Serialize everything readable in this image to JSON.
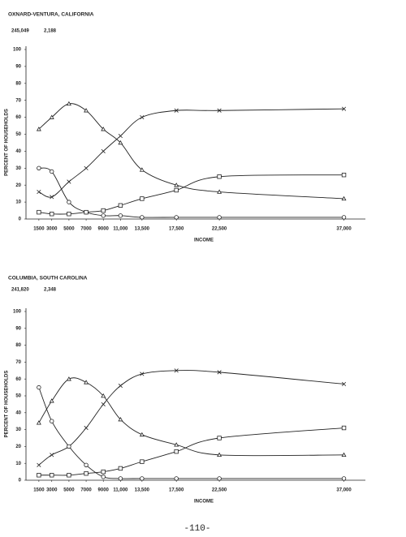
{
  "chart_data": [
    {
      "type": "line",
      "title": "OXNARD-VENTURA, CALIFORNIA",
      "header": [
        "245,049",
        "2,188"
      ],
      "x_label": "INCOME",
      "y_label": "PERCENT OF HOUSEHOLDS",
      "x": [
        1500,
        3000,
        5000,
        7000,
        9000,
        11000,
        13500,
        17500,
        22500,
        37000
      ],
      "xlim": [
        0,
        39500
      ],
      "ylim": [
        0,
        100
      ],
      "xticks": [
        1500,
        3000,
        5000,
        7000,
        9000,
        {
          "value": 11000,
          "label": "11,000"
        },
        {
          "value": 13500,
          "label": "13,500"
        },
        {
          "value": 17500,
          "label": "17,500"
        },
        {
          "value": 22500,
          "label": "22,500"
        },
        {
          "value": 37000,
          "label": "37,000"
        }
      ],
      "yticks": [
        0,
        10,
        20,
        30,
        40,
        50,
        60,
        70,
        80,
        90,
        100
      ],
      "series": [
        {
          "marker": "x",
          "color": "#222",
          "values": [
            16,
            13,
            22,
            30,
            40,
            49,
            60,
            64,
            64,
            65
          ]
        },
        {
          "marker": "triangle",
          "color": "#222",
          "values": [
            53,
            60,
            68,
            64,
            53,
            45,
            29,
            20,
            16,
            12
          ]
        },
        {
          "marker": "circle",
          "color": "#222",
          "values": [
            30,
            28,
            10,
            4,
            2,
            2,
            1,
            1,
            1,
            1
          ]
        },
        {
          "marker": "square",
          "color": "#222",
          "values": [
            4,
            3,
            3,
            4,
            5,
            8,
            12,
            17,
            25,
            26
          ]
        }
      ]
    },
    {
      "type": "line",
      "title": "COLUMBIA, SOUTH CAROLINA",
      "header": [
        "241,820",
        "2,348"
      ],
      "x_label": "INCOME",
      "y_label": "PERCENT OF HOUSEHOLDS",
      "x": [
        1500,
        3000,
        5000,
        7000,
        9000,
        11000,
        13500,
        17500,
        22500,
        37000
      ],
      "xlim": [
        0,
        39500
      ],
      "ylim": [
        0,
        100
      ],
      "xticks": [
        1500,
        3000,
        5000,
        7000,
        9000,
        {
          "value": 11000,
          "label": "11,000"
        },
        {
          "value": 13500,
          "label": "13,500"
        },
        {
          "value": 17500,
          "label": "17,500"
        },
        {
          "value": 22500,
          "label": "22,500"
        },
        {
          "value": 37000,
          "label": "37,000"
        }
      ],
      "yticks": [
        0,
        10,
        20,
        30,
        40,
        50,
        60,
        70,
        80,
        90,
        100
      ],
      "series": [
        {
          "marker": "x",
          "color": "#222",
          "values": [
            9,
            15,
            20,
            31,
            45,
            56,
            63,
            65,
            64,
            57
          ]
        },
        {
          "marker": "triangle",
          "color": "#222",
          "values": [
            34,
            47,
            60,
            58,
            50,
            36,
            27,
            21,
            15,
            15
          ]
        },
        {
          "marker": "circle",
          "color": "#222",
          "values": [
            55,
            35,
            20,
            9,
            2,
            1,
            1,
            1,
            1,
            1
          ]
        },
        {
          "marker": "square",
          "color": "#222",
          "values": [
            3,
            3,
            3,
            4,
            5,
            7,
            11,
            17,
            25,
            31
          ]
        }
      ]
    }
  ],
  "page_number": "-110-"
}
